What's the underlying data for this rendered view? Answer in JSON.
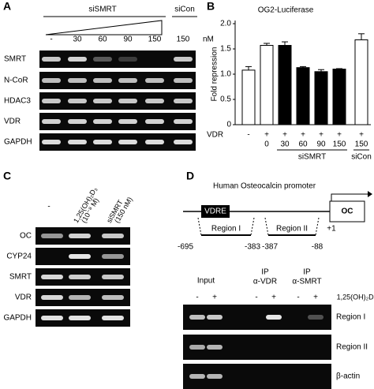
{
  "panels": {
    "a": {
      "letter": "A",
      "group_sisrmt": "siSMRT",
      "group_sicon": "siCon",
      "lanes": [
        "-",
        "30",
        "60",
        "90",
        "150",
        "150"
      ],
      "unit": "nM",
      "rows": [
        "SMRT",
        "N-CoR",
        "HDAC3",
        "VDR",
        "GAPDH"
      ]
    },
    "c": {
      "letter": "C",
      "lanes": [
        "-",
        "1,25(OH)₂D₃",
        "siSMRT"
      ],
      "lane_notes": [
        "(10⁻⁸ M)",
        "(150 nM)"
      ],
      "rows": [
        "OC",
        "CYP24",
        "SMRT",
        "VDR",
        "GAPDH"
      ]
    },
    "d": {
      "letter": "D",
      "title": "Human Osteocalcin promoter",
      "vdre": "VDRE",
      "gene": "OC",
      "tss": "+1",
      "regions": [
        {
          "label": "Region I",
          "start": "-695",
          "end": "-383"
        },
        {
          "label": "Region II",
          "start": "-387",
          "end": "-88"
        }
      ],
      "columns": [
        {
          "label": "Input"
        },
        {
          "label": "IP",
          "sub": "α-VDR"
        },
        {
          "label": "IP",
          "sub": "α-SMRT"
        }
      ],
      "treatment": [
        "-",
        "+"
      ],
      "treatment_label": "1,25(OH)₂D₃",
      "rows": [
        "Region I",
        "Region II",
        "β-actin"
      ]
    }
  },
  "chart_data": {
    "type": "bar",
    "letter": "B",
    "title": "OG2-Luciferase",
    "y_label": "Fold repression",
    "vdr_label": "VDR",
    "vdr": [
      "-",
      "+",
      "+",
      "+",
      "+",
      "+",
      "+"
    ],
    "categories": [
      null,
      "0",
      "30",
      "60",
      "90",
      "150",
      "150"
    ],
    "values": [
      1.08,
      1.57,
      1.57,
      1.13,
      1.05,
      1.1,
      1.68
    ],
    "errors": [
      0.07,
      0.04,
      0.07,
      0.02,
      0.04,
      0.01,
      0.12
    ],
    "colors": [
      "#ffffff",
      "#ffffff",
      "#000000",
      "#000000",
      "#000000",
      "#000000",
      "#ffffff"
    ],
    "groups": [
      {
        "label": "siSMRT",
        "from": 2,
        "to": 5
      },
      {
        "label": "siCon",
        "from": 6,
        "to": 6
      }
    ],
    "ylim": [
      0,
      2
    ],
    "yticks": [
      0,
      0.5,
      {
        "value": 1,
        "label": "1.0"
      },
      1.5,
      {
        "value": 2,
        "label": "2.0"
      }
    ]
  }
}
